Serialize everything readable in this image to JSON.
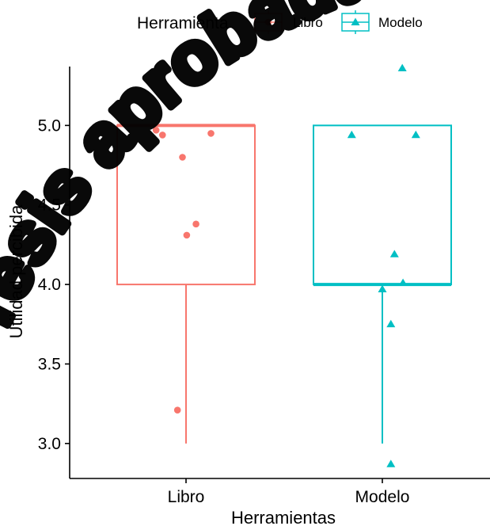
{
  "chart_data": {
    "type": "box",
    "x_title": "Herramientas",
    "y_title": "Utilidad percibida",
    "ylim": [
      2.78,
      5.48
    ],
    "y_ticks": [
      "3.0",
      "3.5",
      "4.0",
      "4.5",
      "5.0"
    ],
    "grid": false,
    "legend": {
      "title": "Herramienta",
      "position": "top",
      "entries": [
        "Libro",
        "Modelo"
      ]
    },
    "categories": [
      "Libro",
      "Modelo"
    ],
    "series": [
      {
        "name": "Libro",
        "color": "#F8766D",
        "marker": "circle",
        "box": {
          "whisker_low": 3.0,
          "q1": 4.0,
          "median": 5.0,
          "q3": 5.0,
          "whisker_high": 5.0
        },
        "points": [
          {
            "jitter": -0.42,
            "y": 4.97
          },
          {
            "jitter": -0.33,
            "y": 4.94
          },
          {
            "jitter": 0.35,
            "y": 4.95
          },
          {
            "jitter": -0.05,
            "y": 4.8
          },
          {
            "jitter": 0.14,
            "y": 4.38
          },
          {
            "jitter": 0.01,
            "y": 4.31
          },
          {
            "jitter": -0.12,
            "y": 3.21
          }
        ]
      },
      {
        "name": "Modelo",
        "color": "#00BFC4",
        "marker": "triangle",
        "box": {
          "whisker_low": 3.0,
          "q1": 4.0,
          "median": 4.0,
          "q3": 5.0,
          "whisker_high": 5.0
        },
        "points": [
          {
            "jitter": 0.28,
            "y": 5.36
          },
          {
            "jitter": -0.43,
            "y": 4.94
          },
          {
            "jitter": 0.47,
            "y": 4.94
          },
          {
            "jitter": 0.17,
            "y": 4.19
          },
          {
            "jitter": 0.29,
            "y": 4.01
          },
          {
            "jitter": 0.0,
            "y": 3.97
          },
          {
            "jitter": 0.12,
            "y": 3.75
          },
          {
            "jitter": 0.12,
            "y": 2.87
          }
        ]
      }
    ]
  },
  "watermark": {
    "text": "Tesis aprobada"
  }
}
